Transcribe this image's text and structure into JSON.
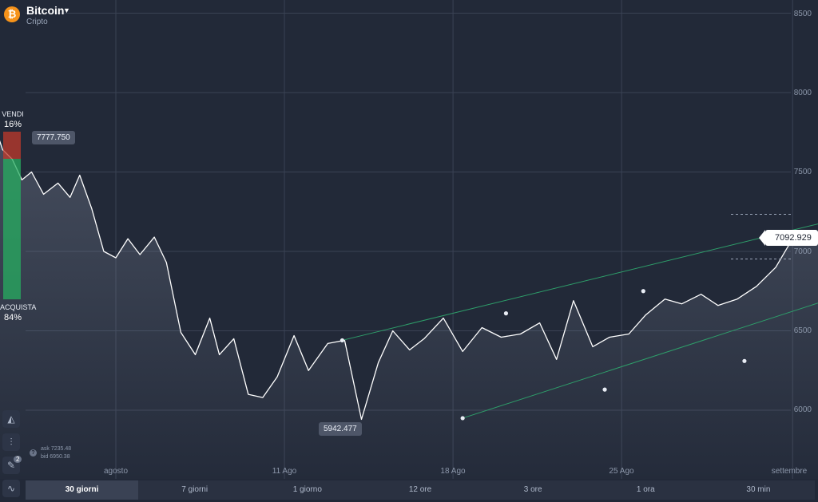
{
  "asset": {
    "icon": "bitcoin-icon",
    "icon_glyph": "₿",
    "name": "Bitcoin",
    "category": "Cripto"
  },
  "y_axis_labels": [
    "8500",
    "8000",
    "7500",
    "7000",
    "6500",
    "6000"
  ],
  "x_axis_labels": [
    "agosto",
    "11 Ago",
    "18 Ago",
    "25 Ago",
    "settembre"
  ],
  "sentiment": {
    "sell_label": "VENDI",
    "sell_pct": "16%",
    "buy_label": "ACQUISTA",
    "buy_pct": "84%",
    "sell_color": "#c0392b",
    "buy_color": "#27ae60"
  },
  "price_tags": {
    "max": "7777.750",
    "min": "5942.477",
    "current": "7092.929"
  },
  "quotes": {
    "ask": "ask 7235.48",
    "bid": "bid 6950.38"
  },
  "tools": {
    "chart_type_icon": "area-chart-icon",
    "indicators_icon": "indicators-icon",
    "drawing_icon": "drawing-tools-icon",
    "drawing_badge": "2",
    "trend_icon": "trend-line-icon"
  },
  "timeframes": [
    {
      "label": "30 giorni",
      "active": true
    },
    {
      "label": "7 giorni",
      "active": false
    },
    {
      "label": "1 giorno",
      "active": false
    },
    {
      "label": "12 ore",
      "active": false
    },
    {
      "label": "3 ore",
      "active": false
    },
    {
      "label": "1 ora",
      "active": false
    },
    {
      "label": "30 min",
      "active": false
    }
  ],
  "colors": {
    "background": "#222938",
    "line": "#ffffff",
    "channel": "#2e9e6a",
    "grid": "#3a4254"
  },
  "chart_data": {
    "type": "line",
    "x_ticks": [
      "agosto",
      "11 Ago",
      "18 Ago",
      "25 Ago",
      "settembre"
    ],
    "y_ticks": [
      6000,
      6500,
      7000,
      7500,
      8000,
      8500
    ],
    "ylim": [
      5800,
      8500
    ],
    "grid": true,
    "x": [
      -5.6,
      -5.1,
      -4.7,
      -4.3,
      -3.9,
      -3.5,
      -3.0,
      -2.4,
      -1.9,
      -1.5,
      -1.0,
      -0.5,
      0.0,
      0.5,
      1.0,
      1.6,
      2.1,
      2.7,
      3.3,
      3.9,
      4.3,
      4.9,
      5.5,
      6.1,
      6.7,
      7.4,
      8.0,
      8.8,
      9.5,
      10.2,
      10.9,
      11.5,
      12.2,
      12.8,
      13.6,
      14.4,
      15.2,
      16.0,
      16.8,
      17.6,
      18.3,
      19.0,
      19.8,
      20.5,
      21.3,
      22.0,
      22.8,
      23.5,
      24.3,
      25.0,
      25.8,
      26.6,
      27.4,
      28.1,
      28.8,
      29.4,
      29.9,
      30.4,
      30.8
    ],
    "series": [
      {
        "values": [
          7810,
          7820,
          7640,
          7580,
          7450,
          7500,
          7360,
          7430,
          7340,
          7480,
          7270,
          7000,
          6960,
          7080,
          6980,
          7090,
          6930,
          6490,
          6350,
          6580,
          6350,
          6450,
          6100,
          6080,
          6210,
          6470,
          6250,
          6420,
          6440,
          5942,
          6300,
          6500,
          6380,
          6450,
          6580,
          6370,
          6520,
          6460,
          6480,
          6550,
          6320,
          6690,
          6400,
          6460,
          6480,
          6600,
          6700,
          6670,
          6730,
          6660,
          6700,
          6780,
          6900,
          7080,
          7050,
          7080,
          7120,
          7100,
          7093
        ]
      }
    ],
    "channel_upper": [
      [
        9.4,
        6440
      ],
      [
        16.2,
        6610
      ],
      [
        21.9,
        6750
      ],
      [
        31.5,
        7260
      ]
    ],
    "channel_lower": [
      [
        14.4,
        5950
      ],
      [
        20.3,
        6130
      ],
      [
        26.1,
        6310
      ],
      [
        31.5,
        6790
      ]
    ]
  }
}
